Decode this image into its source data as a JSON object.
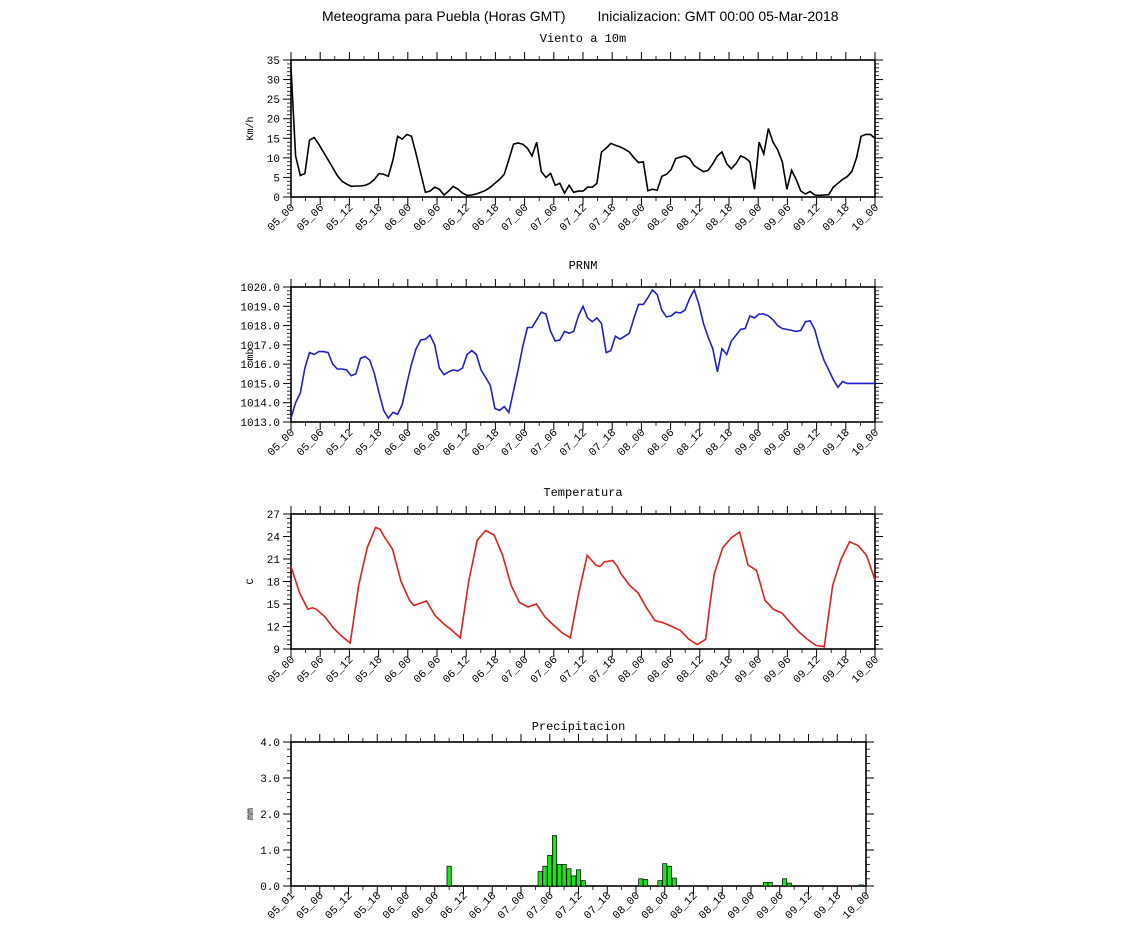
{
  "header": {
    "title": "Meteograma para Puebla (Horas GMT)",
    "init": "Inicializacion: GMT 00:00 05-Mar-2018"
  },
  "chart_data": [
    {
      "type": "line",
      "title": "Viento a 10m",
      "ylabel": "Km/h",
      "color": "#000000",
      "ylim": [
        0,
        35
      ],
      "yticks": [
        0,
        5,
        10,
        15,
        20,
        25,
        30,
        35
      ],
      "ytick_labels": [
        "0",
        "5",
        "10",
        "15",
        "20",
        "25",
        "30",
        "35"
      ],
      "xlim": [
        0,
        120
      ],
      "xtick_labels": [
        "05_00",
        "05_06",
        "05_12",
        "05_18",
        "06_00",
        "06_06",
        "06_12",
        "06_18",
        "07_00",
        "07_06",
        "07_12",
        "07_18",
        "08_00",
        "08_06",
        "08_12",
        "08_18",
        "09_00",
        "09_06",
        "09_12",
        "09_18",
        "10_00"
      ],
      "x": [
        0,
        1,
        2,
        3,
        4,
        5,
        6,
        7,
        8,
        9,
        10,
        11,
        12,
        13,
        14,
        15,
        16,
        17,
        18,
        19,
        20,
        21,
        22,
        23,
        24,
        25,
        26,
        27,
        28,
        29,
        30,
        31,
        32,
        33,
        34,
        35,
        36,
        37,
        38,
        39,
        40,
        41,
        42,
        43,
        44,
        45,
        46,
        47,
        48,
        49,
        50,
        51,
        52,
        53,
        54,
        55,
        56,
        57,
        58,
        59,
        60,
        61,
        62,
        63,
        64,
        65,
        66,
        67,
        68,
        69,
        70,
        71,
        72,
        73,
        74,
        75,
        76,
        77,
        78,
        79,
        80,
        81,
        82,
        83,
        84,
        85,
        86,
        87,
        88,
        89,
        90,
        91,
        92,
        93,
        94,
        95,
        96,
        97,
        98,
        99,
        100,
        101,
        102,
        103,
        104,
        105,
        106,
        107,
        108,
        109,
        110,
        111,
        112,
        113,
        114,
        115,
        116,
        117,
        118,
        119,
        120
      ],
      "values": [
        33,
        10.5,
        5.5,
        6,
        14.5,
        15.2,
        13.5,
        11.5,
        9.5,
        7.5,
        5.5,
        4,
        3.3,
        2.7,
        2.8,
        2.8,
        3,
        3.5,
        4.5,
        6,
        5.8,
        5.3,
        9.5,
        15.5,
        14.8,
        16,
        15.5,
        11,
        6,
        1.2,
        1.5,
        2.5,
        2,
        0.5,
        1.5,
        2.7,
        2,
        1,
        0.4,
        0.5,
        0.8,
        1.2,
        1.7,
        2.5,
        3.5,
        4.5,
        5.8,
        9.5,
        13.5,
        13.8,
        13.5,
        12.5,
        10.5,
        14,
        6.5,
        5,
        6,
        3,
        3.5,
        1,
        3,
        1.2,
        1.5,
        1.5,
        2.5,
        2.5,
        3.5,
        11.5,
        12.5,
        13.7,
        13.2,
        12.8,
        12.2,
        11.5,
        10,
        8.8,
        9,
        1.6,
        2,
        1.7,
        5.3,
        5.8,
        7,
        9.8,
        10.2,
        10.5,
        9.8,
        8,
        7.2,
        6.5,
        6.8,
        8.5,
        10.5,
        11.5,
        8.5,
        7.2,
        8.5,
        10.5,
        10,
        9,
        2,
        14,
        11,
        17.5,
        14,
        12,
        9,
        2,
        6.8,
        4.5,
        1.5,
        0.8,
        1.4,
        0.5,
        0.4,
        0.5,
        0.6,
        2.5,
        3.5,
        4.5,
        5.2
      ],
      "x_extra": [
        121,
        122,
        123,
        124,
        125,
        126
      ],
      "values_extra": [
        6.5,
        10,
        15.5,
        16,
        16,
        15
      ]
    },
    {
      "type": "line",
      "title": "PRNM",
      "ylabel": "mb",
      "color": "#1f1fcf",
      "ylim": [
        1013,
        1020
      ],
      "yticks": [
        1013,
        1014,
        1015,
        1016,
        1017,
        1018,
        1019,
        1020
      ],
      "ytick_labels": [
        "1013.0",
        "1014.0",
        "1015.0",
        "1016.0",
        "1017.0",
        "1018.0",
        "1019.0",
        "1020.0"
      ],
      "xlim": [
        0,
        126
      ],
      "xtick_labels": [
        "05_00",
        "05_06",
        "05_12",
        "05_18",
        "06_00",
        "06_06",
        "06_12",
        "06_18",
        "07_00",
        "07_06",
        "07_12",
        "07_18",
        "08_00",
        "08_06",
        "08_12",
        "08_18",
        "09_00",
        "09_06",
        "09_12",
        "09_18",
        "10_00"
      ],
      "x": [
        0,
        1,
        2,
        3,
        4,
        5,
        6,
        7,
        8,
        9,
        10,
        11,
        12,
        13,
        14,
        15,
        16,
        17,
        18,
        19,
        20,
        21,
        22,
        23,
        24,
        25,
        26,
        27,
        28,
        29,
        30,
        31,
        32,
        33,
        34,
        35,
        36,
        37,
        38,
        39,
        40,
        41,
        42,
        43,
        44,
        45,
        46,
        47,
        48,
        49,
        50,
        51,
        52,
        53,
        54,
        55,
        56,
        57,
        58,
        59,
        60,
        61,
        62,
        63,
        64,
        65,
        66,
        67,
        68,
        69,
        70,
        71,
        72,
        73,
        74,
        75,
        76,
        77,
        78,
        79,
        80,
        81,
        82,
        83,
        84,
        85,
        86,
        87,
        88,
        89,
        90,
        91,
        92,
        93,
        94,
        95,
        96,
        97,
        98,
        99,
        100,
        101,
        102,
        103,
        104,
        105,
        106,
        107,
        108,
        109,
        110,
        111,
        112,
        113,
        114,
        115,
        116,
        117,
        118,
        119,
        120,
        121,
        122,
        123,
        124,
        125,
        126
      ],
      "values": [
        1013.2,
        1014,
        1014.5,
        1015.8,
        1016.6,
        1016.5,
        1016.65,
        1016.65,
        1016.6,
        1016.0,
        1015.75,
        1015.75,
        1015.7,
        1015.4,
        1015.5,
        1016.3,
        1016.4,
        1016.2,
        1015.5,
        1014.5,
        1013.6,
        1013.2,
        1013.5,
        1013.4,
        1013.9,
        1015,
        1016,
        1016.8,
        1017.25,
        1017.3,
        1017.5,
        1017.0,
        1015.8,
        1015.45,
        1015.6,
        1015.7,
        1015.65,
        1015.8,
        1016.5,
        1016.7,
        1016.5,
        1015.7,
        1015.3,
        1014.9,
        1013.7,
        1013.6,
        1013.8,
        1013.5,
        1014.6,
        1015.7,
        1016.9,
        1017.9,
        1017.9,
        1018.3,
        1018.7,
        1018.6,
        1017.7,
        1017.2,
        1017.25,
        1017.7,
        1017.6,
        1017.7,
        1018.5,
        1019.0,
        1018.4,
        1018.2,
        1018.4,
        1018.1,
        1016.6,
        1016.7,
        1017.45,
        1017.3,
        1017.45,
        1017.6,
        1018.4,
        1019.1,
        1019.1,
        1019.45,
        1019.85,
        1019.6,
        1018.8,
        1018.45,
        1018.5,
        1018.7,
        1018.65,
        1018.8,
        1019.4,
        1019.85,
        1019.1,
        1018.1,
        1017.4,
        1016.8,
        1015.6,
        1016.8,
        1016.5,
        1017.2,
        1017.5,
        1017.8,
        1017.85,
        1018.5,
        1018.4,
        1018.6,
        1018.6,
        1018.5,
        1018.3,
        1018.0,
        1017.85,
        1017.8,
        1017.75,
        1017.7,
        1017.75,
        1018.2,
        1018.25,
        1017.8,
        1016.9,
        1016.2,
        1015.7,
        1015.2,
        1014.8,
        1015.1,
        1015.0,
        1015.0,
        1015.0,
        1015.0,
        1015.0,
        1015.0,
        1015.0
      ]
    },
    {
      "type": "line",
      "title": "Temperatura",
      "ylabel": "C",
      "color": "#e0201c",
      "ylim": [
        9,
        27
      ],
      "yticks": [
        9,
        12,
        15,
        18,
        21,
        24,
        27
      ],
      "ytick_labels": [
        "9",
        "12",
        "15",
        "18",
        "21",
        "24",
        "27"
      ],
      "xlim": [
        0,
        126
      ],
      "xtick_labels": [
        "05_00",
        "05_06",
        "05_12",
        "05_18",
        "06_00",
        "06_06",
        "06_12",
        "06_18",
        "07_00",
        "07_06",
        "07_12",
        "07_18",
        "08_00",
        "08_06",
        "08_12",
        "08_18",
        "09_00",
        "09_06",
        "09_12",
        "09_18",
        "10_00"
      ],
      "x": [
        0,
        2,
        4,
        5,
        6,
        8,
        10,
        12,
        14,
        16,
        18,
        20,
        21,
        22,
        24,
        26,
        28,
        29,
        30,
        32,
        34,
        36,
        38,
        40,
        42,
        44,
        46,
        48,
        50,
        52,
        54,
        56,
        58,
        60,
        62,
        64,
        66,
        68,
        70,
        72,
        73,
        74,
        76,
        77,
        78,
        80,
        82,
        84,
        86,
        88,
        90,
        92,
        94,
        96,
        98,
        99,
        100,
        102,
        104,
        106,
        108,
        110,
        112,
        114,
        116,
        118,
        120,
        122,
        124,
        126
      ],
      "values": [
        20,
        16.5,
        14.3,
        14.5,
        14.3,
        13.3,
        11.8,
        10.7,
        9.8,
        17.5,
        22.5,
        25.2,
        25.0,
        24.0,
        22.3,
        18,
        15.5,
        14.8,
        15.0,
        15.4,
        13.5,
        12.4,
        11.5,
        10.5,
        18.0,
        23.5,
        24.8,
        24.2,
        21.5,
        17.5,
        15.2,
        14.6,
        15.0,
        13.3,
        12.2,
        11.2,
        10.5,
        16.5,
        21.5,
        20.2,
        20.0,
        20.6,
        20.8,
        20.1,
        19.0,
        17.5,
        16.5,
        14.5,
        12.8,
        12.5,
        12.0,
        11.5,
        10.3,
        9.6,
        10.3,
        15.0,
        19.0,
        22.5,
        23.8,
        24.6,
        20.2,
        19.5,
        15.5,
        14.3,
        13.8,
        12.5,
        11.3,
        10.3,
        9.5,
        9.3
      ],
      "x_extra": [
        128,
        130,
        132,
        134,
        136,
        138
      ],
      "values_extra": [
        17.5,
        21.0,
        23.3,
        22.8,
        21.5,
        18.2
      ]
    },
    {
      "type": "bar",
      "title": "Precipitacion",
      "ylabel": "mm",
      "color": "#1ee01e",
      "ylim": [
        0,
        4
      ],
      "yticks": [
        0,
        1,
        2,
        3,
        4
      ],
      "ytick_labels": [
        "0.0",
        "1.0",
        "2.0",
        "3.0",
        "4.0"
      ],
      "xlim": [
        0,
        120
      ],
      "xtick_labels": [
        "05_01",
        "05_06",
        "05_12",
        "05_18",
        "06_00",
        "06_06",
        "06_12",
        "06_18",
        "07_00",
        "07_06",
        "07_12",
        "07_18",
        "08_00",
        "08_06",
        "08_12",
        "08_18",
        "09_00",
        "09_06",
        "09_12",
        "09_18",
        "10_00"
      ],
      "x": [
        33,
        52,
        53,
        54,
        55,
        56,
        57,
        58,
        59,
        60,
        61,
        62,
        73,
        74,
        77,
        78,
        79,
        80,
        99,
        100,
        103,
        104,
        119
      ],
      "values": [
        0.55,
        0.4,
        0.55,
        0.85,
        1.4,
        0.6,
        0.6,
        0.48,
        0.28,
        0.45,
        0.15,
        0.0,
        0.2,
        0.18,
        0.15,
        0.62,
        0.55,
        0.22,
        0.1,
        0.1,
        0.2,
        0.08,
        0.03
      ]
    }
  ]
}
